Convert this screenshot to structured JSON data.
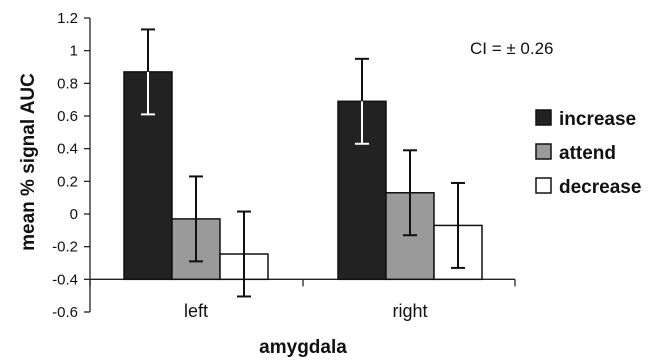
{
  "chart_data": {
    "type": "bar",
    "title": "",
    "xlabel": "amygdala",
    "ylabel": "mean % signal AUC",
    "ylim": [
      -0.6,
      1.2
    ],
    "yticks": [
      -0.6,
      -0.4,
      -0.2,
      0,
      0.2,
      0.4,
      0.6,
      0.8,
      1,
      1.2
    ],
    "ytick_labels": [
      "-0.6",
      "-0.4",
      "-0.2",
      "0",
      "0.2",
      "0.4",
      "0.6",
      "0.8",
      "1",
      "1.2"
    ],
    "bar_baseline": -0.4,
    "categories": [
      "left",
      "right"
    ],
    "series": [
      {
        "name": "increase",
        "values": [
          0.87,
          0.69
        ],
        "error": [
          0.26,
          0.26
        ],
        "color": "#222222"
      },
      {
        "name": "attend",
        "values": [
          -0.03,
          0.13
        ],
        "error": [
          0.26,
          0.26
        ],
        "color": "#9a9a9a"
      },
      {
        "name": "decrease",
        "values": [
          -0.245,
          -0.07
        ],
        "error": [
          0.26,
          0.26
        ],
        "color": "#ffffff"
      }
    ],
    "legend_position": "right",
    "annotation": "CI = ± 0.26",
    "grid": false
  }
}
